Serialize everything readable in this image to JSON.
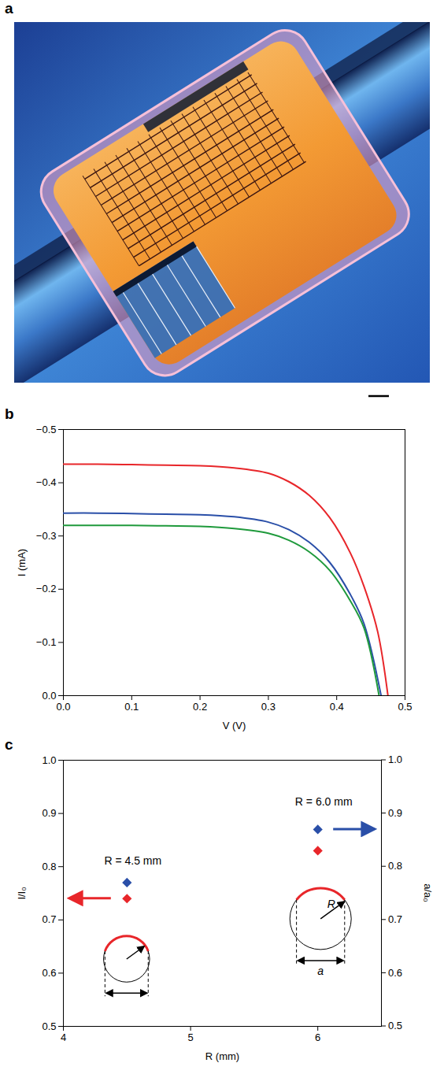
{
  "chart_data": [
    {
      "panel": "a",
      "type": "image"
    },
    {
      "panel": "b",
      "type": "line",
      "xlabel": "V (V)",
      "ylabel": "I (mA)",
      "xlim": [
        0,
        0.5
      ],
      "xticks": [
        {
          "value": 0,
          "label": "0.0"
        },
        0.1,
        0.2,
        0.3,
        0.4,
        0.5
      ],
      "ylim": [
        0,
        -0.5
      ],
      "yticks": [
        {
          "value": 0,
          "label": "0.0"
        },
        {
          "value": -0.1,
          "label": "−0.1"
        },
        {
          "value": -0.2,
          "label": "−0.2"
        },
        {
          "value": -0.3,
          "label": "−0.3"
        },
        {
          "value": -0.4,
          "label": "−0.4"
        },
        {
          "value": -0.5,
          "label": "−0.5"
        }
      ],
      "series": [
        {
          "color": "#e8262a",
          "x": [
            0,
            0.05,
            0.1,
            0.15,
            0.2,
            0.25,
            0.3,
            0.33,
            0.36,
            0.39,
            0.42,
            0.44,
            0.46,
            0.475
          ],
          "values": [
            -0.435,
            -0.435,
            -0.434,
            -0.433,
            -0.432,
            -0.428,
            -0.418,
            -0.402,
            -0.376,
            -0.334,
            -0.268,
            -0.205,
            -0.12,
            0
          ]
        },
        {
          "color": "#2a4fa8",
          "x": [
            0,
            0.05,
            0.1,
            0.15,
            0.2,
            0.25,
            0.3,
            0.33,
            0.36,
            0.39,
            0.42,
            0.44,
            0.465
          ],
          "values": [
            -0.343,
            -0.343,
            -0.342,
            -0.341,
            -0.34,
            -0.336,
            -0.326,
            -0.312,
            -0.288,
            -0.25,
            -0.19,
            -0.135,
            0
          ]
        },
        {
          "color": "#1f9a3c",
          "x": [
            0,
            0.05,
            0.1,
            0.15,
            0.2,
            0.25,
            0.3,
            0.33,
            0.36,
            0.39,
            0.42,
            0.44,
            0.462
          ],
          "values": [
            -0.32,
            -0.32,
            -0.32,
            -0.319,
            -0.318,
            -0.314,
            -0.305,
            -0.292,
            -0.27,
            -0.235,
            -0.178,
            -0.127,
            0
          ]
        }
      ]
    },
    {
      "panel": "c",
      "type": "scatter",
      "xlabel": "R (mm)",
      "ylabel": "I/I₀",
      "y2label": "a/a₀",
      "xlim": [
        4,
        6.5
      ],
      "xticks": [
        4,
        5,
        6
      ],
      "ylim": [
        0.5,
        1
      ],
      "yticks": [
        0.5,
        0.6,
        0.7,
        0.8,
        0.9,
        {
          "value": 1,
          "label": "1.0"
        }
      ],
      "y2lim": [
        0.5,
        1
      ],
      "y2ticks": [
        0.5,
        0.6,
        0.7,
        0.8,
        0.9,
        {
          "value": 1,
          "label": "1.0"
        }
      ],
      "x": [
        4.5,
        6
      ],
      "marker": "diamond",
      "series": [
        {
          "color": "#e8262a",
          "values": [
            0.74,
            0.83
          ]
        },
        {
          "color": "#2a4fa8",
          "axis": "y2",
          "values": [
            0.77,
            0.87
          ]
        }
      ],
      "annotations": [
        "R = 4.5 mm",
        "R = 6.0 mm"
      ],
      "inset_labels": [
        "R",
        "a"
      ]
    }
  ]
}
